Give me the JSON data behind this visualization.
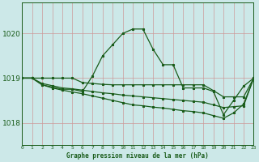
{
  "background_color": "#cce8e8",
  "grid_color_major": "#d4a0a0",
  "grid_color_minor": "#dcc0c0",
  "line_color": "#1a5c1a",
  "xlabel": "Graphe pression niveau de la mer (hPa)",
  "xlim": [
    0,
    23
  ],
  "ylim": [
    1017.5,
    1020.7
  ],
  "yticks": [
    1018,
    1019,
    1020
  ],
  "xticks": [
    0,
    1,
    2,
    3,
    4,
    5,
    6,
    7,
    8,
    9,
    10,
    11,
    12,
    13,
    14,
    15,
    16,
    17,
    18,
    19,
    20,
    21,
    22,
    23
  ],
  "line1_x": [
    0,
    1,
    2,
    3,
    4,
    5,
    6,
    7,
    8,
    9,
    10,
    11,
    12,
    13,
    14,
    15,
    16,
    17,
    18,
    19,
    20,
    21,
    22,
    23
  ],
  "line1_y": [
    1019.0,
    1019.0,
    1018.85,
    1018.8,
    1018.75,
    1018.75,
    1018.7,
    1019.05,
    1019.5,
    1019.75,
    1020.0,
    1020.1,
    1020.1,
    1019.65,
    1019.3,
    1019.3,
    1018.78,
    1018.78,
    1018.78,
    1018.7,
    1018.18,
    1018.5,
    1018.82,
    1019.0
  ],
  "line2_x": [
    0,
    1,
    2,
    3,
    4,
    5,
    6,
    7,
    8,
    9,
    10,
    11,
    12,
    13,
    14,
    15,
    16,
    17,
    18,
    19,
    20,
    21,
    22,
    23
  ],
  "line2_y": [
    1019.0,
    1019.0,
    1019.0,
    1019.0,
    1019.0,
    1019.0,
    1018.9,
    1018.88,
    1018.86,
    1018.85,
    1018.85,
    1018.85,
    1018.85,
    1018.85,
    1018.85,
    1018.85,
    1018.85,
    1018.85,
    1018.85,
    1018.72,
    1018.58,
    1018.58,
    1018.58,
    1019.0
  ],
  "line3_x": [
    0,
    1,
    2,
    3,
    4,
    5,
    6,
    7,
    8,
    9,
    10,
    11,
    12,
    13,
    14,
    15,
    16,
    17,
    18,
    19,
    20,
    21,
    22,
    23
  ],
  "line3_y": [
    1019.0,
    1019.0,
    1018.88,
    1018.83,
    1018.78,
    1018.76,
    1018.73,
    1018.7,
    1018.67,
    1018.65,
    1018.62,
    1018.6,
    1018.58,
    1018.56,
    1018.54,
    1018.52,
    1018.5,
    1018.48,
    1018.46,
    1018.4,
    1018.34,
    1018.36,
    1018.38,
    1019.0
  ],
  "line4_x": [
    0,
    1,
    2,
    3,
    4,
    5,
    6,
    7,
    8,
    9,
    10,
    11,
    12,
    13,
    14,
    15,
    16,
    17,
    18,
    19,
    20,
    21,
    22,
    23
  ],
  "line4_y": [
    1019.0,
    1019.0,
    1018.85,
    1018.78,
    1018.73,
    1018.69,
    1018.65,
    1018.6,
    1018.55,
    1018.5,
    1018.45,
    1018.4,
    1018.38,
    1018.35,
    1018.33,
    1018.3,
    1018.27,
    1018.25,
    1018.22,
    1018.16,
    1018.1,
    1018.22,
    1018.42,
    1019.0
  ]
}
